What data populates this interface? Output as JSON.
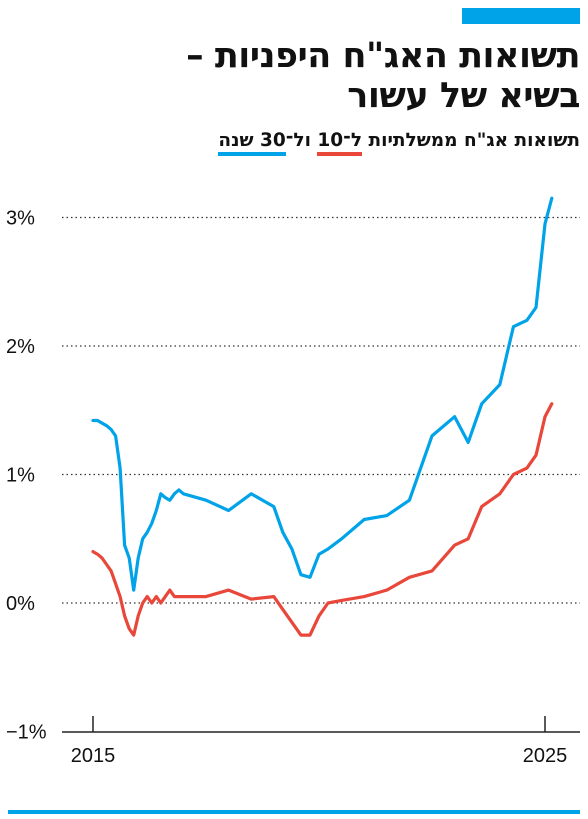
{
  "header": {
    "title_line1": "תשואות האג\"ח היפניות –",
    "title_line2": "בשיא של עשור",
    "subtitle_prefix": "תשואות אג\"ח ממשלתיות",
    "subtitle_10y": "ל־10",
    "subtitle_join": "ול־",
    "subtitle_30y": "30 שנה"
  },
  "colors": {
    "accent": "#00a3e8",
    "series_10y": "#e8473a",
    "series_30y": "#00a3e8"
  },
  "chart_data": {
    "type": "line",
    "title": "תשואות האג\"ח היפניות – בשיא של עשור",
    "subtitle": "תשואות אג\"ח ממשלתיות ל־10 ול־30 שנה",
    "xlabel": "",
    "ylabel": "",
    "xlim": [
      2015.0,
      2025.25
    ],
    "ylim": [
      -1,
      3.3
    ],
    "x_ticks": [
      2015,
      2025
    ],
    "x_tick_labels": [
      "2015",
      "2025"
    ],
    "y_ticks": [
      -1,
      0,
      1,
      2,
      3
    ],
    "y_tick_labels": [
      "−1%",
      "0%",
      "1%",
      "2%",
      "3%"
    ],
    "grid": "dotted horizontal",
    "x": [
      2015.0,
      2015.1,
      2015.2,
      2015.3,
      2015.4,
      2015.5,
      2015.6,
      2015.7,
      2015.8,
      2015.9,
      2016.0,
      2016.1,
      2016.2,
      2016.3,
      2016.4,
      2016.5,
      2016.6,
      2016.7,
      2016.8,
      2016.9,
      2017.0,
      2017.5,
      2018.0,
      2018.5,
      2019.0,
      2019.2,
      2019.4,
      2019.6,
      2019.8,
      2020.0,
      2020.2,
      2020.5,
      2021.0,
      2021.5,
      2022.0,
      2022.5,
      2023.0,
      2023.3,
      2023.6,
      2024.0,
      2024.3,
      2024.6,
      2024.8,
      2025.0,
      2025.15
    ],
    "series": [
      {
        "key": "30y",
        "values": [
          1.42,
          1.42,
          1.4,
          1.38,
          1.35,
          1.3,
          1.05,
          0.45,
          0.35,
          0.1,
          0.35,
          0.5,
          0.55,
          0.62,
          0.72,
          0.85,
          0.82,
          0.8,
          0.85,
          0.88,
          0.85,
          0.8,
          0.72,
          0.85,
          0.75,
          0.55,
          0.42,
          0.22,
          0.2,
          0.38,
          0.42,
          0.5,
          0.65,
          0.68,
          0.8,
          1.3,
          1.45,
          1.25,
          1.55,
          1.7,
          2.15,
          2.2,
          2.3,
          2.95,
          3.15
        ]
      },
      {
        "key": "10y",
        "values": [
          0.4,
          0.38,
          0.35,
          0.3,
          0.25,
          0.15,
          0.05,
          -0.1,
          -0.2,
          -0.25,
          -0.1,
          0.0,
          0.05,
          0.0,
          0.05,
          0.0,
          0.05,
          0.1,
          0.05,
          0.05,
          0.05,
          0.05,
          0.1,
          0.03,
          0.05,
          -0.05,
          -0.15,
          -0.25,
          -0.25,
          -0.1,
          0.0,
          0.02,
          0.05,
          0.1,
          0.2,
          0.25,
          0.45,
          0.5,
          0.75,
          0.85,
          1.0,
          1.05,
          1.15,
          1.45,
          1.55
        ]
      }
    ]
  }
}
